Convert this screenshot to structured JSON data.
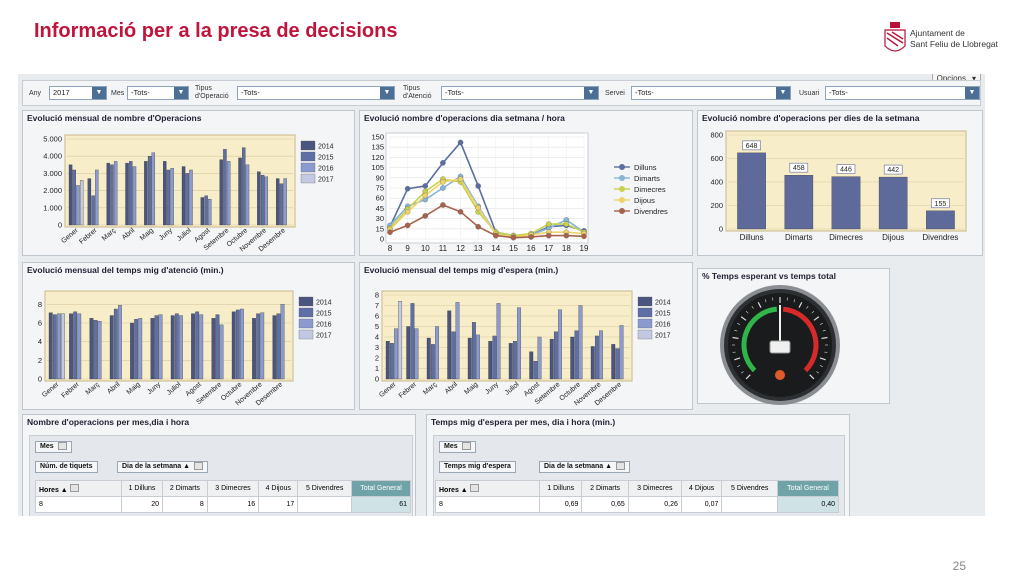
{
  "slide": {
    "title": "Informació per a la presa de decisions",
    "page_number": "25"
  },
  "logo": {
    "line1": "Ajuntament de",
    "line2": "Sant Feliu de Llobregat"
  },
  "dashboard": {
    "options_label": "Opcions"
  },
  "filters": [
    {
      "label": "Any",
      "value": "2017"
    },
    {
      "label": "Mes",
      "value": "-Tots-"
    },
    {
      "label": "Tipus d'Operació",
      "label_l1": "Tipus",
      "label_l2": "d'Operació",
      "value": "-Tots-"
    },
    {
      "label": "Tipus d'Atenció",
      "label_l1": "Tipus",
      "label_l2": "d'Atenció",
      "value": "-Tots-"
    },
    {
      "label": "Servei",
      "value": "-Tots-"
    },
    {
      "label": "Usuari",
      "value": "-Tots-"
    }
  ],
  "panels": {
    "p1": {
      "title": "Evolució mensual de nombre d'Operacions"
    },
    "p2": {
      "title": "Evolució nombre d'operacions dia setmana / hora"
    },
    "p3": {
      "title": "Evolució nombre d'operacions per dies de la setmana"
    },
    "p4": {
      "title": "Evolució mensual del temps mig d'atenció (min.)"
    },
    "p5": {
      "title": "Evolució mensual del temps mig d'espera (min.)"
    },
    "p6": {
      "title": "% Temps esperant vs temps total"
    }
  },
  "colors": {
    "y2014": "#4a5580",
    "y2015": "#5e6fa6",
    "y2016": "#8b9bd0",
    "y2017": "#c3c9e3",
    "bar": "#5d6a9a"
  },
  "chart_data": [
    {
      "type": "bar",
      "months": [
        "Gener",
        "Febrer",
        "Març",
        "Abril",
        "Maig",
        "Juny",
        "Juliol",
        "Agost",
        "Setembre",
        "Octubre",
        "Novembre",
        "Desembre"
      ],
      "yticks": [
        "0",
        "1.000",
        "2.000",
        "3.000",
        "4.000",
        "5.000"
      ],
      "ylim": [
        0,
        5000
      ],
      "legend": [
        "2014",
        "2015",
        "2016",
        "2017"
      ],
      "series": [
        {
          "name": "2014",
          "values": [
            3500,
            2700,
            3600,
            3600,
            3700,
            3700,
            3400,
            1600,
            3800,
            3900,
            3100,
            2700
          ]
        },
        {
          "name": "2015",
          "values": [
            3200,
            1700,
            3500,
            3700,
            4000,
            3200,
            3000,
            1700,
            4400,
            4500,
            2900,
            2400
          ]
        },
        {
          "name": "2016",
          "values": [
            2300,
            3200,
            3700,
            3400,
            4200,
            3300,
            3200,
            1500,
            3700,
            3500,
            2800,
            2700
          ]
        },
        {
          "name": "2017",
          "values": [
            2600,
            0,
            0,
            0,
            0,
            0,
            0,
            0,
            0,
            0,
            0,
            0
          ]
        }
      ]
    },
    {
      "type": "line",
      "x": [
        "8",
        "9",
        "10",
        "11",
        "12",
        "13",
        "14",
        "15",
        "16",
        "17",
        "18",
        "19"
      ],
      "yticks": [
        "0",
        "15",
        "30",
        "45",
        "60",
        "75",
        "90",
        "105",
        "120",
        "135",
        "150"
      ],
      "ylim": [
        0,
        150
      ],
      "series": [
        {
          "name": "Dilluns",
          "color": "#5a6fa0",
          "values": [
            18,
            74,
            78,
            112,
            142,
            78,
            10,
            5,
            6,
            18,
            20,
            12
          ]
        },
        {
          "name": "Dimarts",
          "color": "#86b4d6",
          "values": [
            20,
            48,
            58,
            75,
            92,
            48,
            8,
            4,
            6,
            16,
            28,
            10
          ]
        },
        {
          "name": "Dimecres",
          "color": "#c8d24f",
          "values": [
            16,
            44,
            70,
            88,
            84,
            40,
            10,
            5,
            8,
            22,
            22,
            10
          ]
        },
        {
          "name": "Dijous",
          "color": "#f0d26a",
          "values": [
            14,
            40,
            64,
            84,
            88,
            46,
            7,
            3,
            6,
            10,
            10,
            8
          ]
        },
        {
          "name": "Divendres",
          "color": "#a8614a",
          "values": [
            10,
            20,
            34,
            50,
            40,
            18,
            5,
            2,
            3,
            5,
            5,
            4
          ]
        }
      ]
    },
    {
      "type": "bar",
      "categories": [
        "Dilluns",
        "Dimarts",
        "Dimecres",
        "Dijous",
        "Divendres"
      ],
      "values": [
        648,
        458,
        446,
        442,
        155
      ],
      "data_labels": [
        "648",
        "458",
        "446",
        "442",
        "155"
      ],
      "yticks": [
        "0",
        "200",
        "400",
        "600",
        "800"
      ],
      "ylim": [
        0,
        800
      ]
    },
    {
      "type": "bar",
      "months": [
        "Gener",
        "Febrer",
        "Març",
        "Abril",
        "Maig",
        "Juny",
        "Juliol",
        "Agost",
        "Setembre",
        "Octubre",
        "Novembre",
        "Desembre"
      ],
      "yticks": [
        "0",
        "2",
        "4",
        "6",
        "8"
      ],
      "ylim": [
        0,
        9
      ],
      "legend": [
        "2014",
        "2015",
        "2016",
        "2017"
      ],
      "series": [
        {
          "name": "2014",
          "values": [
            7.1,
            7.0,
            6.5,
            6.8,
            6.0,
            6.5,
            6.8,
            7.0,
            6.5,
            7.2,
            6.5,
            6.8
          ]
        },
        {
          "name": "2015",
          "values": [
            6.9,
            7.2,
            6.3,
            7.5,
            6.4,
            6.8,
            7.0,
            7.2,
            6.9,
            7.4,
            7.0,
            7.0
          ]
        },
        {
          "name": "2016",
          "values": [
            7.0,
            7.0,
            6.2,
            7.9,
            6.5,
            6.9,
            6.8,
            6.9,
            5.8,
            7.5,
            7.1,
            8.0
          ]
        },
        {
          "name": "2017",
          "values": [
            7.0,
            0,
            0,
            0,
            0,
            0,
            0,
            0,
            0,
            0,
            0,
            0
          ]
        }
      ]
    },
    {
      "type": "bar",
      "months": [
        "Gener",
        "Febrer",
        "Març",
        "Abril",
        "Maig",
        "Juny",
        "Juliol",
        "Agost",
        "Setembre",
        "Octubre",
        "Novembre",
        "Desembre"
      ],
      "yticks": [
        "0",
        "1",
        "2",
        "3",
        "4",
        "5",
        "6",
        "7",
        "8"
      ],
      "ylim": [
        0,
        8
      ],
      "legend": [
        "2014",
        "2015",
        "2016",
        "2017"
      ],
      "series": [
        {
          "name": "2014",
          "values": [
            3.6,
            5.0,
            3.9,
            6.5,
            3.9,
            3.6,
            3.4,
            2.6,
            3.8,
            4.0,
            3.1,
            3.3
          ]
        },
        {
          "name": "2015",
          "values": [
            3.4,
            7.2,
            3.3,
            4.5,
            5.4,
            4.1,
            3.6,
            1.7,
            4.5,
            4.6,
            4.1,
            2.9
          ]
        },
        {
          "name": "2016",
          "values": [
            4.8,
            4.8,
            5.0,
            7.3,
            4.2,
            7.2,
            6.8,
            4.0,
            6.6,
            7.0,
            4.6,
            5.1
          ]
        },
        {
          "name": "2017",
          "values": [
            7.4,
            0,
            0,
            0,
            0,
            0,
            0,
            0,
            0,
            0,
            0,
            0
          ]
        }
      ]
    }
  ],
  "grid1": {
    "title": "Nombre d'operacions per mes,dia i hora",
    "btn_mes": "Mes",
    "btn_measure": "Núm. de tiquets",
    "btn_day": "Dia de la setmana ▲",
    "hours_label": "Hores",
    "cols": [
      "1 Dilluns",
      "2 Dimarts",
      "3 Dimecres",
      "4 Dijous",
      "5 Divendres",
      "Total General"
    ],
    "row_label": "8",
    "row": [
      "20",
      "8",
      "16",
      "17",
      "",
      "61"
    ]
  },
  "grid2": {
    "title": "Temps mig d'espera per mes, dia i hora (min.)",
    "btn_mes": "Mes",
    "btn_measure": "Temps mig d'espera",
    "btn_day": "Dia de la setmana ▲",
    "hours_label": "Hores",
    "cols": [
      "1 Dilluns",
      "2 Dimarts",
      "3 Dimecres",
      "4 Dijous",
      "5 Divendres",
      "Total General"
    ],
    "row_label": "8",
    "row": [
      "0,69",
      "0,65",
      "0,26",
      "0,07",
      "",
      "0,40"
    ]
  },
  "gauge": {
    "value_percent": 0
  }
}
